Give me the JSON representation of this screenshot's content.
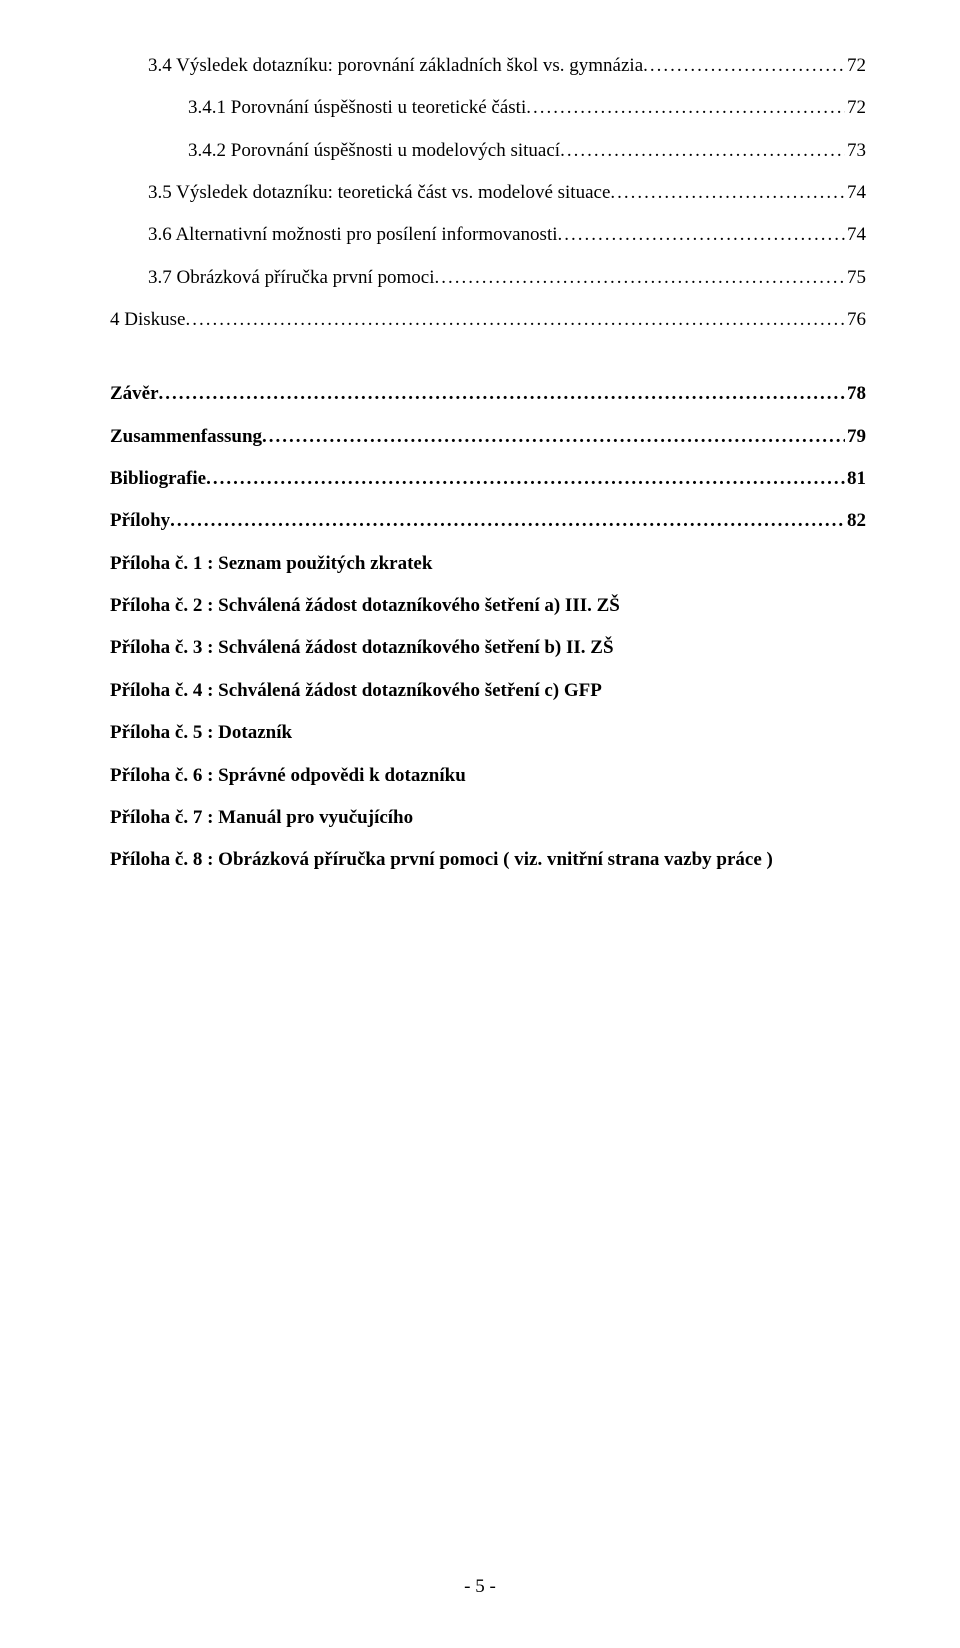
{
  "toc": [
    {
      "label": "3.4 Výsledek dotazníku: porovnání základních škol vs. gymnázia",
      "page": "72",
      "indent": 1,
      "bold": false
    },
    {
      "label": "3.4.1 Porovnání úspěšnosti u teoretické části",
      "page": "72",
      "indent": 2,
      "bold": false
    },
    {
      "label": "3.4.2 Porovnání úspěšnosti u modelových situací",
      "page": "73",
      "indent": 2,
      "bold": false
    },
    {
      "label": "3.5 Výsledek dotazníku: teoretická část vs. modelové situace",
      "page": "74",
      "indent": 1,
      "bold": false
    },
    {
      "label": "3.6 Alternativní možnosti pro posílení informovanosti",
      "page": "74",
      "indent": 1,
      "bold": false
    },
    {
      "label": "3.7 Obrázková příručka první pomoci",
      "page": "75",
      "indent": 1,
      "bold": false
    },
    {
      "label": "4 Diskuse",
      "page": "76",
      "indent": 0,
      "bold": false
    }
  ],
  "toc2": [
    {
      "label": "Závěr",
      "page": "78",
      "indent": 0,
      "bold": true
    },
    {
      "label": "Zusammenfassung",
      "page": "79",
      "indent": 0,
      "bold": true
    },
    {
      "label": "Bibliografie",
      "page": "81",
      "indent": 0,
      "bold": true
    },
    {
      "label": "Přílohy",
      "page": "82",
      "indent": 0,
      "bold": true
    }
  ],
  "attachments": [
    "Příloha č. 1 : Seznam použitých zkratek",
    "Příloha č. 2 : Schválená žádost dotazníkového šetření a) III. ZŠ",
    "Příloha č. 3 : Schválená žádost dotazníkového šetření b) II. ZŠ",
    "Příloha č. 4 : Schválená žádost dotazníkového šetření c) GFP",
    "Příloha č. 5 : Dotazník",
    "Příloha č. 6 : Správné odpovědi k dotazníku",
    "Příloha č. 7 : Manuál pro vyučujícího",
    "Příloha č. 8 : Obrázková příručka první pomoci ( viz. vnitřní strana vazby práce )"
  ],
  "pageNumber": "- 5 -"
}
